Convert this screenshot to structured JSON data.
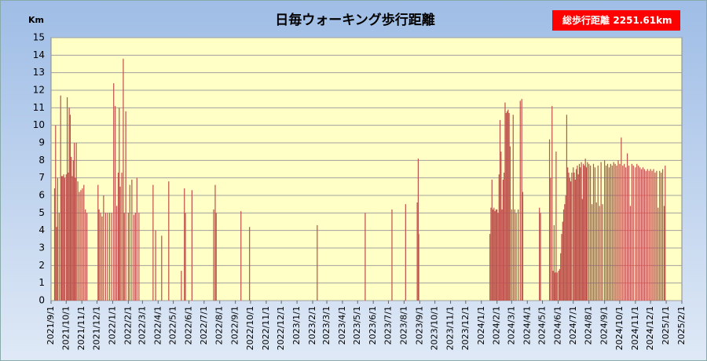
{
  "chart_data": {
    "type": "bar",
    "title": "日毎ウォーキング歩行距離",
    "y_label": "Km",
    "badge_label": "総歩行距離",
    "badge_value": "2251.61km",
    "color": "#c0504d",
    "grid": true,
    "ylim": [
      0,
      15
    ],
    "yticks": [
      0,
      1,
      2,
      3,
      4,
      5,
      6,
      7,
      8,
      9,
      10,
      11,
      12,
      13,
      14,
      15
    ],
    "xlim": [
      "2021/9/1",
      "2025/2/1"
    ],
    "xticks": [
      "2021/9/1",
      "2021/10/1",
      "2021/11/1",
      "2021/12/1",
      "2022/1/1",
      "2022/2/1",
      "2022/3/1",
      "2022/4/1",
      "2022/5/1",
      "2022/6/1",
      "2022/7/1",
      "2022/8/1",
      "2022/9/1",
      "2022/10/1",
      "2022/11/1",
      "2022/12/1",
      "2023/1/1",
      "2023/2/1",
      "2023/3/1",
      "2023/4/1",
      "2023/5/1",
      "2023/6/1",
      "2023/7/1",
      "2023/8/1",
      "2023/9/1",
      "2023/10/1",
      "2023/11/1",
      "2023/12/1",
      "2024/1/1",
      "2024/2/1",
      "2024/3/1",
      "2024/4/1",
      "2024/5/1",
      "2024/6/1",
      "2024/7/1",
      "2024/8/1",
      "2024/9/1",
      "2024/10/1",
      "2024/11/1",
      "2024/12/1",
      "2025/1/1",
      "2025/2/1"
    ],
    "x": [
      "2021/9/8",
      "2021/9/10",
      "2021/9/12",
      "2021/9/14",
      "2021/9/17",
      "2021/9/20",
      "2021/9/22",
      "2021/9/24",
      "2021/9/26",
      "2021/9/28",
      "2021/10/1",
      "2021/10/3",
      "2021/10/5",
      "2021/10/7",
      "2021/10/9",
      "2021/10/11",
      "2021/10/13",
      "2021/10/15",
      "2021/10/17",
      "2021/10/19",
      "2021/10/21",
      "2021/10/24",
      "2021/10/27",
      "2021/10/30",
      "2021/11/2",
      "2021/11/5",
      "2021/11/8",
      "2021/11/11",
      "2021/12/3",
      "2021/12/5",
      "2021/12/8",
      "2021/12/11",
      "2021/12/14",
      "2021/12/18",
      "2021/12/22",
      "2021/12/26",
      "2021/12/30",
      "2022/1/3",
      "2022/1/6",
      "2022/1/9",
      "2022/1/12",
      "2022/1/14",
      "2022/1/16",
      "2022/1/19",
      "2022/1/22",
      "2022/1/24",
      "2022/1/27",
      "2022/2/1",
      "2022/2/4",
      "2022/2/8",
      "2022/2/12",
      "2022/2/15",
      "2022/2/18",
      "2022/2/22",
      "2022/3/22",
      "2022/3/27",
      "2022/4/8",
      "2022/4/22",
      "2022/5/17",
      "2022/5/23",
      "2022/5/25",
      "2022/6/7",
      "2022/7/20",
      "2022/7/23",
      "2022/7/25",
      "2022/9/12",
      "2022/9/29",
      "2023/2/10",
      "2023/5/16",
      "2023/7/8",
      "2023/8/4",
      "2023/8/27",
      "2023/8/29",
      "2023/8/30",
      "2024/1/18",
      "2024/1/20",
      "2024/1/22",
      "2024/1/24",
      "2024/1/26",
      "2024/1/28",
      "2024/1/30",
      "2024/2/1",
      "2024/2/3",
      "2024/2/5",
      "2024/2/7",
      "2024/2/9",
      "2024/2/11",
      "2024/2/13",
      "2024/2/15",
      "2024/2/17",
      "2024/2/19",
      "2024/2/21",
      "2024/2/23",
      "2024/2/25",
      "2024/2/27",
      "2024/3/1",
      "2024/3/4",
      "2024/3/7",
      "2024/3/10",
      "2024/3/14",
      "2024/3/18",
      "2024/3/21",
      "2024/3/23",
      "2024/4/25",
      "2024/4/27",
      "2024/5/15",
      "2024/5/17",
      "2024/5/20",
      "2024/5/22",
      "2024/5/24",
      "2024/5/26",
      "2024/5/28",
      "2024/5/30",
      "2024/6/2",
      "2024/6/4",
      "2024/6/6",
      "2024/6/8",
      "2024/6/10",
      "2024/6/12",
      "2024/6/14",
      "2024/6/16",
      "2024/6/18",
      "2024/6/20",
      "2024/6/22",
      "2024/6/24",
      "2024/6/26",
      "2024/6/28",
      "2024/7/1",
      "2024/7/3",
      "2024/7/5",
      "2024/7/7",
      "2024/7/9",
      "2024/7/11",
      "2024/7/13",
      "2024/7/15",
      "2024/7/17",
      "2024/7/19",
      "2024/7/21",
      "2024/7/23",
      "2024/7/25",
      "2024/7/27",
      "2024/7/29",
      "2024/8/1",
      "2024/8/4",
      "2024/8/7",
      "2024/8/10",
      "2024/8/13",
      "2024/8/16",
      "2024/8/19",
      "2024/8/22",
      "2024/8/25",
      "2024/8/28",
      "2024/9/1",
      "2024/9/4",
      "2024/9/7",
      "2024/9/10",
      "2024/9/13",
      "2024/9/16",
      "2024/9/19",
      "2024/9/22",
      "2024/9/25",
      "2024/9/28",
      "2024/10/1",
      "2024/10/4",
      "2024/10/7",
      "2024/10/10",
      "2024/10/13",
      "2024/10/16",
      "2024/10/19",
      "2024/10/22",
      "2024/10/25",
      "2024/10/28",
      "2024/11/1",
      "2024/11/4",
      "2024/11/7",
      "2024/11/10",
      "2024/11/13",
      "2024/11/16",
      "2024/11/19",
      "2024/11/22",
      "2024/11/25",
      "2024/11/28",
      "2024/12/1",
      "2024/12/4",
      "2024/12/7",
      "2024/12/10",
      "2024/12/13",
      "2024/12/16",
      "2024/12/19",
      "2024/12/22",
      "2024/12/25",
      "2024/12/28",
      "2024/12/30"
    ],
    "values": [
      6.4,
      10,
      4.2,
      7,
      5,
      11.7,
      7.1,
      7.1,
      7.2,
      7,
      7.2,
      11.6,
      7.3,
      11,
      10.6,
      8.2,
      7.1,
      8,
      9,
      7,
      9,
      6.8,
      6.2,
      6.3,
      6.4,
      6.6,
      5.2,
      5,
      6.6,
      5.2,
      5,
      4.8,
      6,
      5,
      5,
      5,
      5,
      12.4,
      11.1,
      5.4,
      7.3,
      11,
      6.5,
      7.3,
      13.8,
      5,
      10.8,
      5,
      6.6,
      6.9,
      4.9,
      5,
      7,
      5,
      6.6,
      4,
      3.7,
      6.8,
      1.7,
      6.4,
      5,
      6.3,
      5.2,
      6.6,
      5,
      5.1,
      4.2,
      4.3,
      5,
      5.2,
      5.5,
      5.6,
      8.1,
      3.8,
      3.8,
      5.3,
      6.9,
      5.2,
      5.3,
      5.1,
      5.2,
      5.2,
      5,
      7.2,
      10.3,
      8.5,
      5.2,
      6.9,
      7.3,
      11.3,
      10.7,
      10.8,
      10.9,
      10.7,
      8.8,
      5.2,
      10.6,
      5.2,
      5,
      5.2,
      11.4,
      11.5,
      6.2,
      5.3,
      5,
      9.2,
      7,
      11.1,
      1.7,
      4.3,
      1.6,
      8.5,
      1.6,
      1.7,
      1.8,
      2.7,
      3.8,
      4.5,
      5.2,
      5.5,
      6,
      10.6,
      7.6,
      7.3,
      7,
      6.8,
      7.3,
      7.6,
      7.3,
      6.9,
      7.5,
      7.7,
      7.2,
      7.8,
      7.6,
      7.9,
      5.8,
      7.8,
      7.7,
      8.1,
      7.6,
      7.9,
      7.8,
      7.7,
      5.5,
      7.8,
      7.6,
      5.6,
      7.7,
      5.4,
      7.9,
      5.5,
      8,
      7.7,
      7.8,
      7.6,
      7.8,
      7.7,
      7.9,
      7.8,
      7.7,
      8,
      7.8,
      9.3,
      7.7,
      7.8,
      7.6,
      8.4,
      7.7,
      5.4,
      7.8,
      7.7,
      7.6,
      7.8,
      7.7,
      7.6,
      7.5,
      7.6,
      7.5,
      7.4,
      7.5,
      7.4,
      7.5,
      7.4,
      7.5,
      7.3,
      7.4,
      5.3,
      7.4,
      7.3,
      7.5,
      5.4,
      7.7
    ]
  }
}
